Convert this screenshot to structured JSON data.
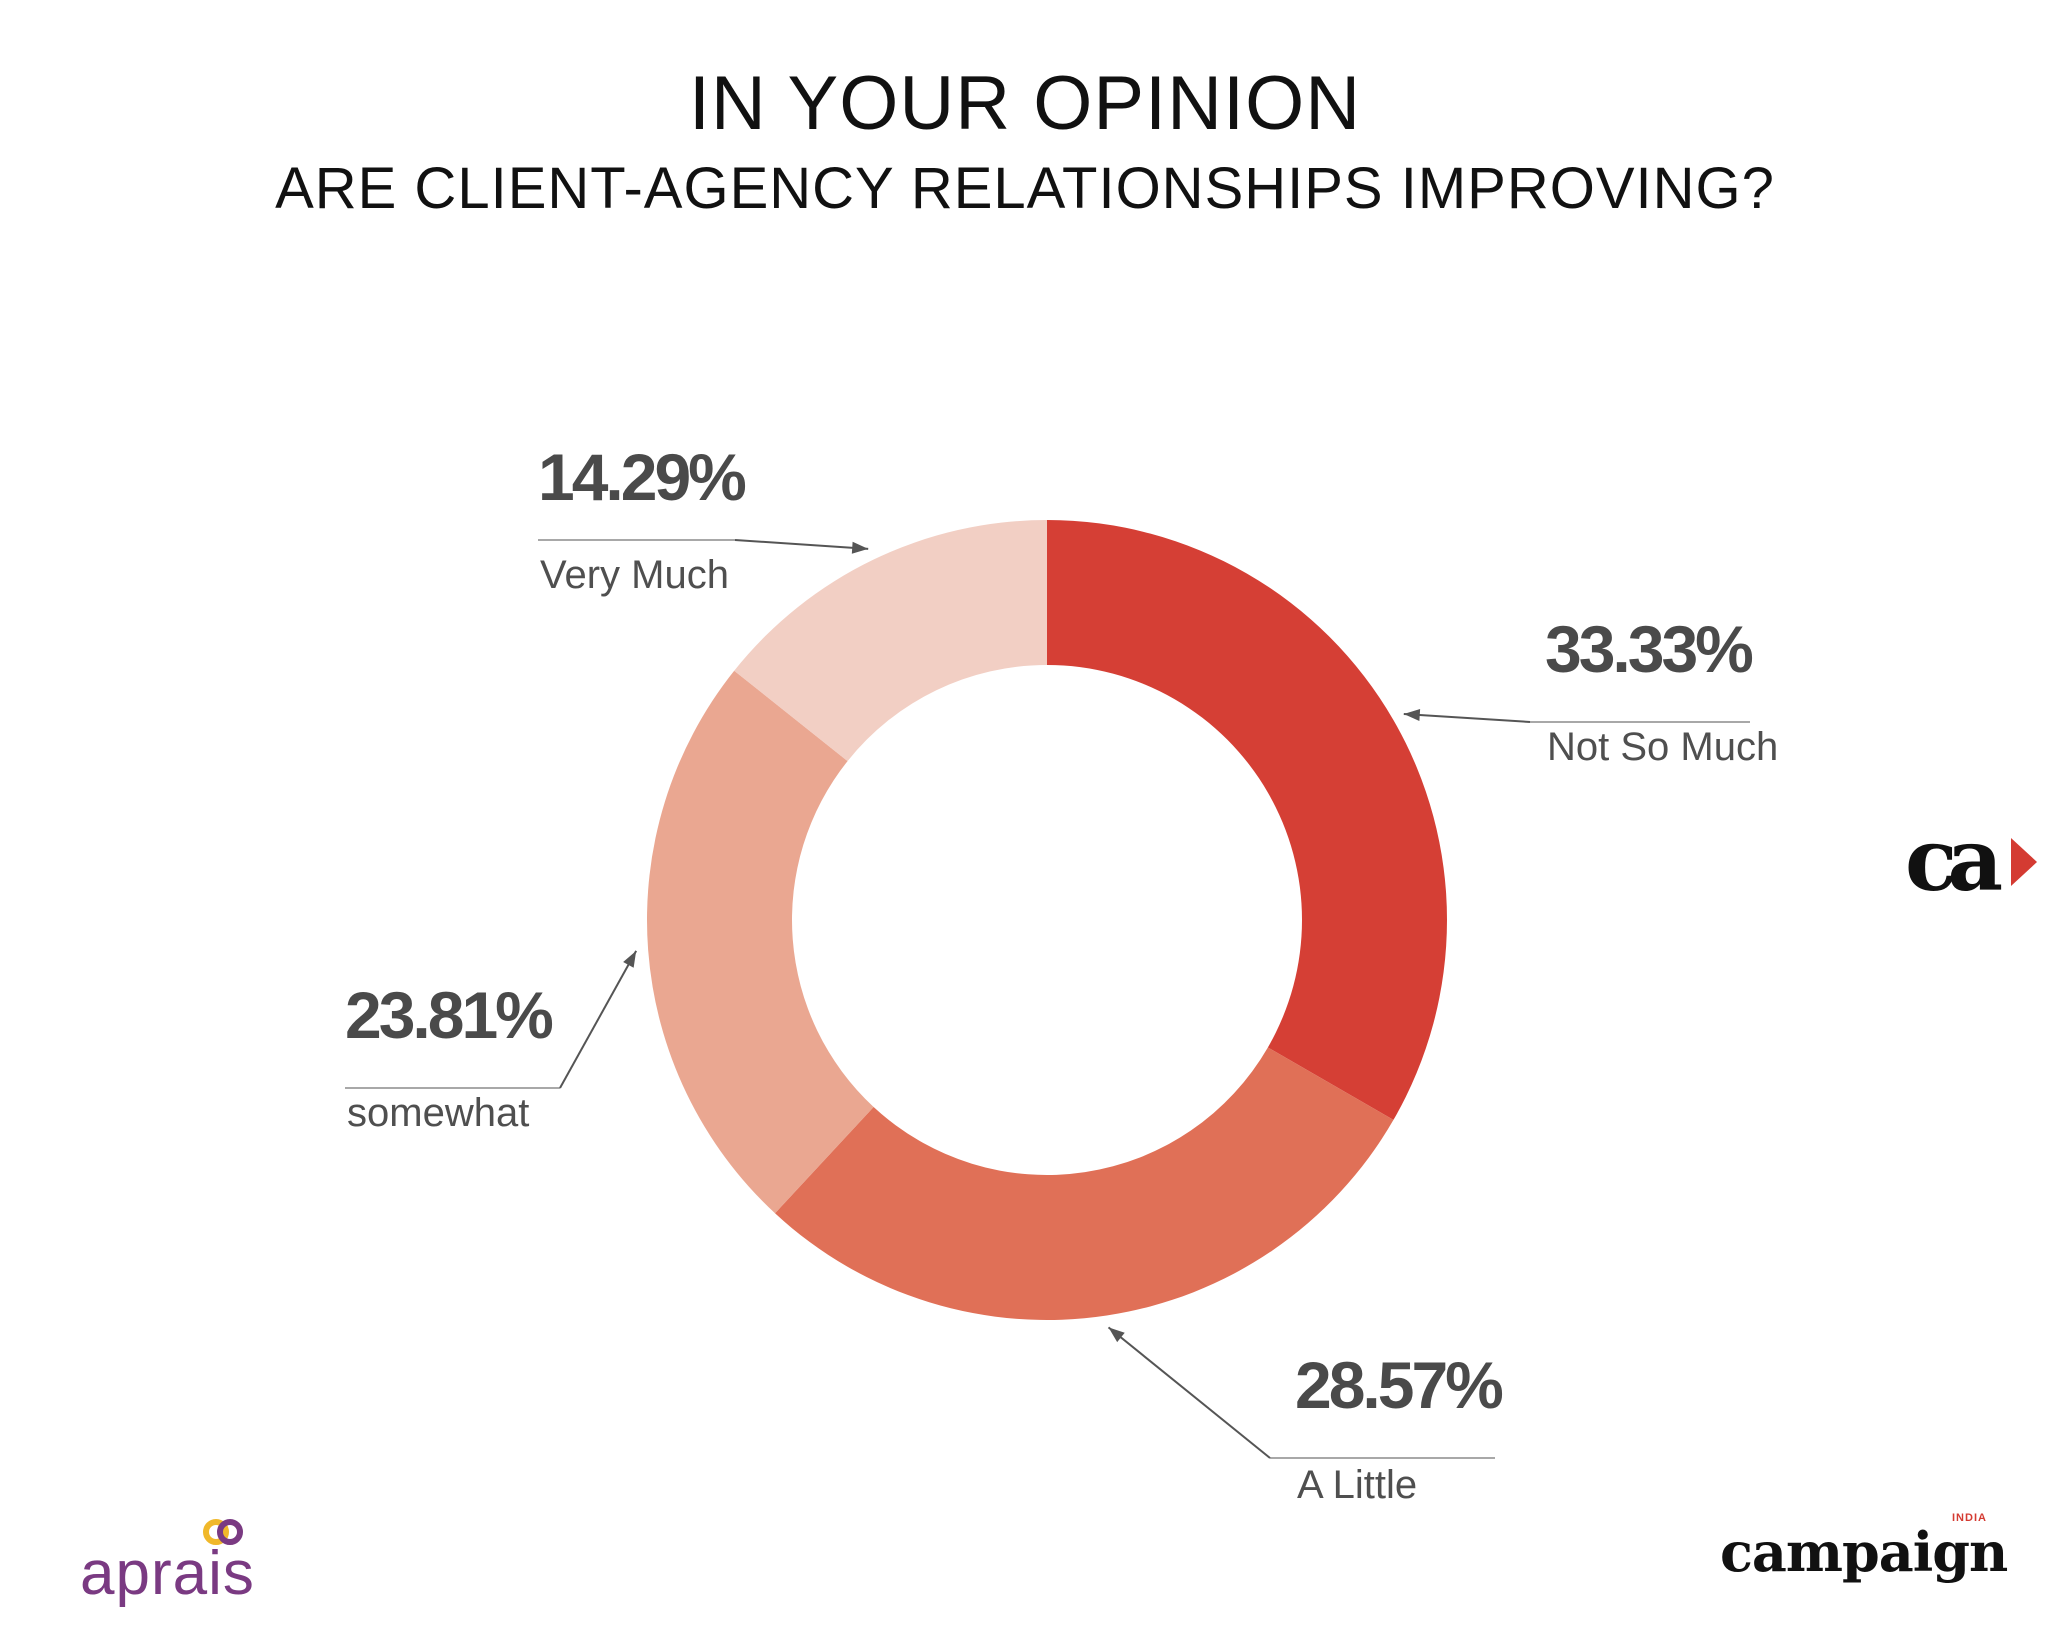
{
  "header": {
    "title": "IN YOUR OPINION",
    "subtitle": "ARE CLIENT-AGENCY RELATIONSHIPS IMPROVING?"
  },
  "chart_data": {
    "type": "pie",
    "donut": true,
    "title": "IN YOUR OPINION",
    "subtitle": "ARE CLIENT-AGENCY RELATIONSHIPS IMPROVING?",
    "slices": [
      {
        "category": "Not So Much",
        "value": 33.33,
        "label": "33.33%",
        "color": "#d53f35"
      },
      {
        "category": "A Little",
        "value": 28.57,
        "label": "28.57%",
        "color": "#e07057"
      },
      {
        "category": "somewhat",
        "value": 23.81,
        "label": "23.81%",
        "color": "#eaa791"
      },
      {
        "category": "Very Much",
        "value": 14.29,
        "label": "14.29%",
        "color": "#f2cfc4"
      }
    ],
    "start_angle": "top",
    "direction": "clockwise",
    "legend": "none"
  },
  "logos": {
    "ca": "ca",
    "aprais": "aprais",
    "campaign": "campaign",
    "campaign_superscript": "INDIA"
  },
  "colors": {
    "ring_colors": [
      "#d53f35",
      "#e07057",
      "#eaa791",
      "#f2cfc4"
    ],
    "text": "#4a4a4a",
    "aprais_purple": "#7a3a82",
    "aprais_ring_gold": "#f0b82a",
    "brand_red": "#d43b32"
  }
}
